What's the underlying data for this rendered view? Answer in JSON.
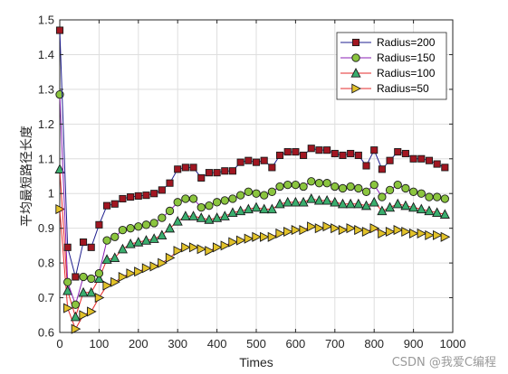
{
  "watermark": "CSDN @我爱C编程",
  "colors": {
    "background": "#ffffff",
    "grid": "#dedede",
    "axis": "#262626"
  },
  "chart_data": {
    "type": "line",
    "title": "",
    "xlabel": "Times",
    "ylabel": "平均最短路径长度",
    "xlim": [
      0,
      1000
    ],
    "ylim": [
      0.6,
      1.5
    ],
    "xticks": [
      0,
      100,
      200,
      300,
      400,
      500,
      600,
      700,
      800,
      900,
      1000
    ],
    "yticks": [
      0.6,
      0.7,
      0.8,
      0.9,
      1,
      1.1,
      1.2,
      1.3,
      1.4,
      1.5
    ],
    "xtick_labels": [
      "0",
      "100",
      "200",
      "300",
      "400",
      "500",
      "600",
      "700",
      "800",
      "900",
      "1000"
    ],
    "ytick_labels": [
      "0.6",
      "0.7",
      "0.8",
      "0.9",
      "1",
      "1.1",
      "1.2",
      "1.3",
      "1.4",
      "1.5"
    ],
    "grid": true,
    "legend_position": "top-right",
    "x": [
      0,
      20,
      40,
      60,
      80,
      100,
      120,
      140,
      160,
      180,
      200,
      220,
      240,
      260,
      280,
      300,
      320,
      340,
      360,
      380,
      400,
      420,
      440,
      460,
      480,
      500,
      520,
      540,
      560,
      580,
      600,
      620,
      640,
      660,
      680,
      700,
      720,
      740,
      760,
      780,
      800,
      820,
      840,
      860,
      880,
      900,
      920,
      940,
      960,
      980
    ],
    "series": [
      {
        "name": "Radius=200",
        "marker": "square",
        "line_color": "#1f1f8f",
        "marker_fill": "#a11621",
        "values": [
          1.47,
          0.845,
          0.76,
          0.86,
          0.845,
          0.91,
          0.965,
          0.97,
          0.985,
          0.99,
          0.993,
          0.995,
          1.0,
          1.01,
          1.03,
          1.07,
          1.075,
          1.075,
          1.045,
          1.06,
          1.06,
          1.065,
          1.065,
          1.09,
          1.095,
          1.09,
          1.095,
          1.075,
          1.11,
          1.12,
          1.12,
          1.11,
          1.13,
          1.125,
          1.125,
          1.115,
          1.11,
          1.115,
          1.11,
          1.08,
          1.125,
          1.07,
          1.095,
          1.12,
          1.115,
          1.1,
          1.1,
          1.095,
          1.085,
          1.075
        ]
      },
      {
        "name": "Radius=150",
        "marker": "circle",
        "line_color": "#8a1fb4",
        "marker_fill": "#8bc53f",
        "values": [
          1.285,
          0.745,
          0.68,
          0.76,
          0.755,
          0.77,
          0.865,
          0.875,
          0.895,
          0.9,
          0.905,
          0.91,
          0.915,
          0.93,
          0.95,
          0.975,
          0.985,
          0.985,
          0.96,
          0.965,
          0.975,
          0.98,
          0.985,
          0.995,
          1.005,
          1.0,
          0.995,
          1.005,
          1.02,
          1.025,
          1.025,
          1.02,
          1.035,
          1.03,
          1.03,
          1.02,
          1.015,
          1.02,
          1.015,
          1.005,
          1.025,
          0.99,
          1.01,
          1.025,
          1.015,
          1.005,
          1.0,
          0.99,
          0.99,
          0.985
        ]
      },
      {
        "name": "Radius=100",
        "marker": "triangle-up",
        "line_color": "#e62b2b",
        "marker_fill": "#3aae6e",
        "values": [
          1.07,
          0.72,
          0.645,
          0.715,
          0.715,
          0.755,
          0.81,
          0.815,
          0.84,
          0.855,
          0.86,
          0.865,
          0.87,
          0.88,
          0.9,
          0.92,
          0.935,
          0.935,
          0.93,
          0.925,
          0.93,
          0.935,
          0.945,
          0.95,
          0.955,
          0.96,
          0.955,
          0.955,
          0.97,
          0.975,
          0.975,
          0.975,
          0.985,
          0.98,
          0.98,
          0.975,
          0.97,
          0.97,
          0.97,
          0.965,
          0.975,
          0.95,
          0.96,
          0.97,
          0.965,
          0.96,
          0.955,
          0.95,
          0.945,
          0.94
        ]
      },
      {
        "name": "Radius=50",
        "marker": "triangle-right",
        "line_color": "#e62b2b",
        "marker_fill": "#e2c229",
        "values": [
          0.955,
          0.67,
          0.61,
          0.65,
          0.66,
          0.7,
          0.735,
          0.745,
          0.76,
          0.77,
          0.775,
          0.785,
          0.79,
          0.8,
          0.815,
          0.835,
          0.845,
          0.845,
          0.84,
          0.835,
          0.845,
          0.85,
          0.86,
          0.865,
          0.87,
          0.875,
          0.875,
          0.875,
          0.885,
          0.89,
          0.895,
          0.895,
          0.905,
          0.9,
          0.905,
          0.9,
          0.895,
          0.9,
          0.895,
          0.89,
          0.9,
          0.885,
          0.89,
          0.895,
          0.89,
          0.885,
          0.885,
          0.88,
          0.88,
          0.875
        ]
      }
    ]
  }
}
